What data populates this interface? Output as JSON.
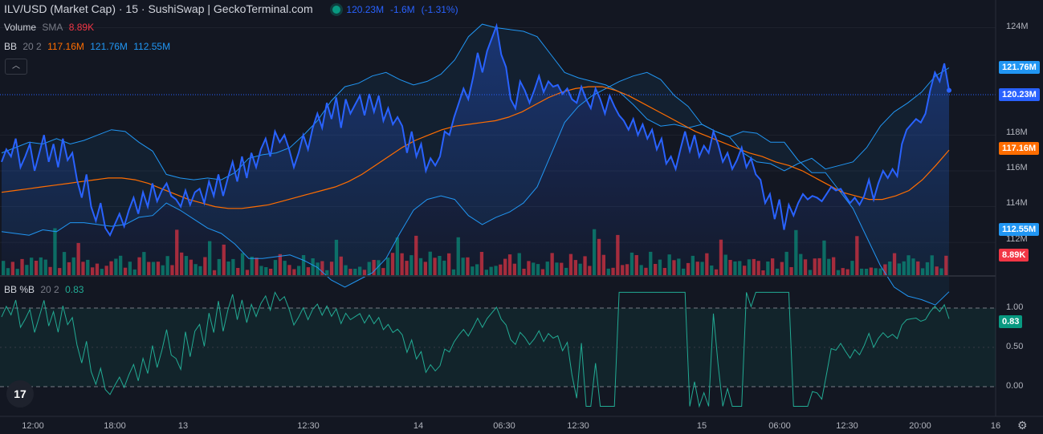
{
  "header": {
    "title": "ILV/USD (Market Cap) · 15 · SushiSwap | GeckoTerminal.com",
    "last": "120.23M",
    "change": "-1.6M",
    "change_pct": "(-1.31%)"
  },
  "volume_legend": {
    "label": "Volume",
    "sma_label": "SMA",
    "value": "8.89K"
  },
  "bb_legend": {
    "label": "BB",
    "params": "20 2",
    "basis": "117.16M",
    "upper": "121.76M",
    "lower": "112.55M"
  },
  "pctb_legend": {
    "label": "BB %B",
    "params": "20 2",
    "value": "0.83"
  },
  "price_axis": {
    "ticks": [
      "124M",
      "118M",
      "116M",
      "114M",
      "112M"
    ],
    "tick_values": [
      124,
      118,
      116,
      114,
      112
    ]
  },
  "pctb_axis": {
    "ticks": [
      "1.00",
      "0.50",
      "0.00"
    ]
  },
  "tags": {
    "upper": "121.76M",
    "last": "120.23M",
    "basis": "117.16M",
    "lower": "112.55M",
    "volume": "8.89K",
    "pctb": "0.83"
  },
  "time_axis": [
    "12:00",
    "18:00",
    "13",
    "12:30",
    "14",
    "06:30",
    "12:30",
    "15",
    "06:00",
    "12:30",
    "20:00",
    "16"
  ],
  "colors": {
    "price": "#2962ff",
    "basis": "#ff6d00",
    "bands": "#2196f3",
    "up": "#089981",
    "down": "#f23645",
    "pctb": "#22ab94"
  },
  "chart_data": {
    "type": "line",
    "ylim": [
      111.2,
      125.1
    ],
    "price": [
      116.5,
      117.2,
      116.8,
      117.8,
      116.2,
      116.8,
      117.5,
      116.0,
      117.0,
      118.0,
      116.5,
      117.5,
      116.2,
      117.8,
      116.6,
      117.0,
      115.5,
      114.5,
      115.8,
      114.0,
      113.2,
      114.2,
      112.8,
      112.4,
      113.0,
      113.6,
      112.9,
      113.8,
      114.5,
      113.6,
      114.8,
      114.0,
      115.3,
      114.3,
      114.9,
      115.3,
      114.6,
      114.4,
      114.0,
      114.9,
      114.1,
      114.8,
      115.0,
      114.2,
      115.4,
      114.6,
      115.8,
      114.6,
      115.6,
      116.5,
      115.4,
      116.8,
      115.6,
      117.0,
      116.2,
      117.2,
      117.8,
      116.8,
      118.2,
      117.6,
      118.0,
      117.2,
      116.2,
      117.0,
      118.0,
      117.2,
      118.4,
      119.2,
      118.4,
      119.8,
      118.9,
      120.1,
      118.4,
      120.0,
      119.2,
      119.7,
      120.2,
      119.1,
      120.3,
      119.3,
      120.2,
      118.8,
      119.5,
      118.6,
      119.0,
      118.5,
      117.0,
      118.2,
      116.8,
      117.5,
      116.0,
      116.7,
      116.3,
      116.8,
      118.2,
      118.0,
      119.0,
      119.8,
      120.6,
      120.0,
      121.2,
      122.6,
      121.5,
      122.7,
      123.4,
      124.1,
      122.5,
      121.8,
      120.0,
      119.5,
      121.0,
      120.5,
      119.8,
      120.5,
      121.3,
      120.4,
      121.0,
      120.7,
      120.8,
      120.3,
      120.6,
      120.0,
      119.8,
      120.7,
      120.0,
      119.5,
      120.6,
      120.0,
      119.2,
      120.2,
      119.6,
      119.1,
      118.8,
      118.3,
      118.9,
      118.0,
      118.6,
      117.8,
      118.3,
      117.2,
      117.8,
      116.4,
      116.8,
      116.1,
      117.2,
      118.2,
      117.1,
      118.0,
      116.8,
      117.4,
      117.0,
      118.2,
      117.5,
      116.5,
      117.0,
      116.1,
      116.6,
      117.3,
      116.2,
      116.7,
      115.8,
      115.5,
      114.2,
      114.7,
      113.3,
      114.4,
      112.7,
      114.1,
      113.5,
      114.2,
      114.7,
      114.4,
      114.6,
      114.5,
      114.3,
      114.7,
      115.1,
      114.9,
      115.0,
      114.6,
      114.2,
      114.5,
      114.1,
      114.6,
      115.5,
      114.4,
      115.3,
      116.0,
      115.6,
      116.1,
      115.7,
      117.5,
      118.3,
      118.6,
      118.9,
      118.7,
      119.2,
      120.5,
      121.5,
      121.0,
      122.0,
      120.5
    ],
    "basis": [
      114.8,
      114.9,
      115.0,
      115.1,
      115.2,
      115.3,
      115.4,
      115.5,
      115.6,
      115.6,
      115.5,
      115.3,
      115.0,
      114.7,
      114.4,
      114.2,
      114.0,
      113.9,
      113.9,
      114.0,
      114.1,
      114.3,
      114.5,
      114.7,
      114.9,
      115.1,
      115.4,
      115.8,
      116.3,
      116.8,
      117.3,
      117.7,
      118.0,
      118.3,
      118.5,
      118.6,
      118.7,
      118.8,
      119.0,
      119.3,
      119.7,
      120.1,
      120.4,
      120.6,
      120.7,
      120.7,
      120.5,
      120.2,
      119.8,
      119.4,
      119.0,
      118.6,
      118.2,
      117.9,
      117.6,
      117.3,
      117.0,
      116.8,
      116.5,
      116.3,
      116.0,
      115.6,
      115.2,
      114.8,
      114.6,
      114.4,
      114.4,
      114.6,
      114.9,
      115.5,
      116.3,
      117.16
    ],
    "upper": [
      117.0,
      117.3,
      117.6,
      117.5,
      117.8,
      117.5,
      117.7,
      118.0,
      118.3,
      118.2,
      117.6,
      117.1,
      115.8,
      115.6,
      115.5,
      115.6,
      115.5,
      115.9,
      116.7,
      116.9,
      117.0,
      117.3,
      118.0,
      118.8,
      119.9,
      120.7,
      120.9,
      121.3,
      121.5,
      121.1,
      120.8,
      121.0,
      121.4,
      122.2,
      123.5,
      124.2,
      124.0,
      123.9,
      123.8,
      123.5,
      122.5,
      121.5,
      121.2,
      121.0,
      120.8,
      120.4,
      119.7,
      118.9,
      118.5,
      118.6,
      118.4,
      118.6,
      118.2,
      117.9,
      117.0,
      116.5,
      116.4,
      116.0,
      116.4,
      116.7,
      116.1,
      116.3,
      116.5,
      117.3,
      118.5,
      119.3,
      119.8,
      120.4,
      121.3,
      121.76
    ]
  }
}
